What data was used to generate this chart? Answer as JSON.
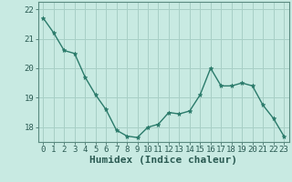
{
  "x": [
    0,
    1,
    2,
    3,
    4,
    5,
    6,
    7,
    8,
    9,
    10,
    11,
    12,
    13,
    14,
    15,
    16,
    17,
    18,
    19,
    20,
    21,
    22,
    23
  ],
  "y": [
    21.7,
    21.2,
    20.6,
    20.5,
    19.7,
    19.1,
    18.6,
    17.9,
    17.7,
    17.65,
    18.0,
    18.1,
    18.5,
    18.45,
    18.55,
    19.1,
    20.0,
    19.4,
    19.4,
    19.5,
    19.4,
    18.75,
    18.3,
    17.7
  ],
  "xlabel": "Humidex (Indice chaleur)",
  "ylim": [
    17.5,
    22.25
  ],
  "xlim": [
    -0.5,
    23.5
  ],
  "line_color": "#2a7a6a",
  "marker": "*",
  "marker_size": 3.5,
  "bg_color": "#c8eae2",
  "grid_color": "#a8cfc6",
  "tick_labels": [
    "0",
    "1",
    "2",
    "3",
    "4",
    "5",
    "6",
    "7",
    "8",
    "9",
    "10",
    "11",
    "12",
    "13",
    "14",
    "15",
    "16",
    "17",
    "18",
    "19",
    "20",
    "21",
    "22",
    "23"
  ],
  "yticks": [
    18,
    19,
    20,
    21,
    22
  ],
  "xlabel_fontsize": 8,
  "tick_fontsize": 6.5,
  "line_width": 1.0
}
